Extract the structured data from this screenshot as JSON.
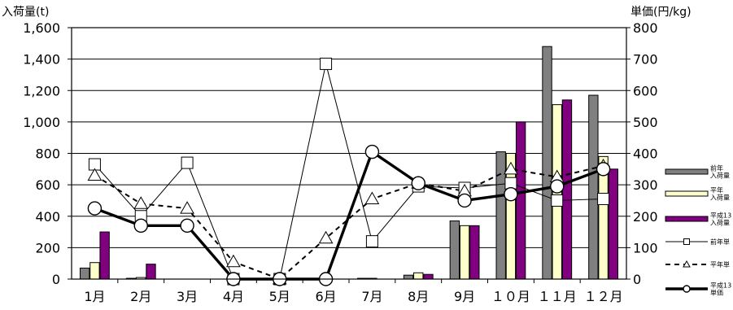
{
  "chart_data": {
    "type": "bar",
    "categories": [
      "1月",
      "2月",
      "3月",
      "4月",
      "5月",
      "6月",
      "7月",
      "8月",
      "9月",
      "１０月",
      "１１月",
      "１２月"
    ],
    "y_left": {
      "label": "入荷量(t)",
      "range": [
        0,
        1600
      ],
      "ticks": [
        "0",
        "200",
        "400",
        "600",
        "800",
        "1,000",
        "1,200",
        "1,400",
        "1,600"
      ]
    },
    "y_right": {
      "label": "単価(円/kg)",
      "range": [
        0,
        800
      ],
      "ticks": [
        "0",
        "100",
        "200",
        "300",
        "400",
        "500",
        "600",
        "700",
        "800"
      ]
    },
    "grid": "horizontal",
    "legend_position": "right",
    "series": [
      {
        "name": "前年\n入荷量",
        "kind": "bar",
        "axis": "left",
        "color": "#808080",
        "values": [
          70,
          5,
          0,
          0,
          0,
          0,
          5,
          25,
          370,
          810,
          1480,
          1170
        ]
      },
      {
        "name": "平年\n入荷量",
        "kind": "bar",
        "axis": "left",
        "color": "#ffffcc",
        "values": [
          105,
          10,
          0,
          0,
          0,
          0,
          5,
          40,
          340,
          800,
          1110,
          780
        ]
      },
      {
        "name": "平成13\n入荷量",
        "kind": "bar",
        "axis": "left",
        "color": "#800080",
        "values": [
          300,
          95,
          0,
          0,
          0,
          0,
          0,
          30,
          340,
          1000,
          1140,
          700
        ]
      },
      {
        "name": "前年単",
        "kind": "line",
        "axis": "right",
        "marker": "square",
        "line": "solid-thin",
        "values": [
          365,
          200,
          370,
          0,
          0,
          685,
          120,
          295,
          290,
          305,
          250,
          255
        ]
      },
      {
        "name": "平年単",
        "kind": "line",
        "axis": "right",
        "marker": "triangle",
        "line": "dashed",
        "values": [
          330,
          240,
          225,
          55,
          0,
          130,
          255,
          305,
          280,
          350,
          325,
          360
        ]
      },
      {
        "name": "平成13\n単価",
        "kind": "line",
        "axis": "right",
        "marker": "circle",
        "line": "solid-thick",
        "values": [
          225,
          170,
          170,
          0,
          0,
          0,
          405,
          305,
          250,
          270,
          295,
          350
        ]
      }
    ]
  }
}
